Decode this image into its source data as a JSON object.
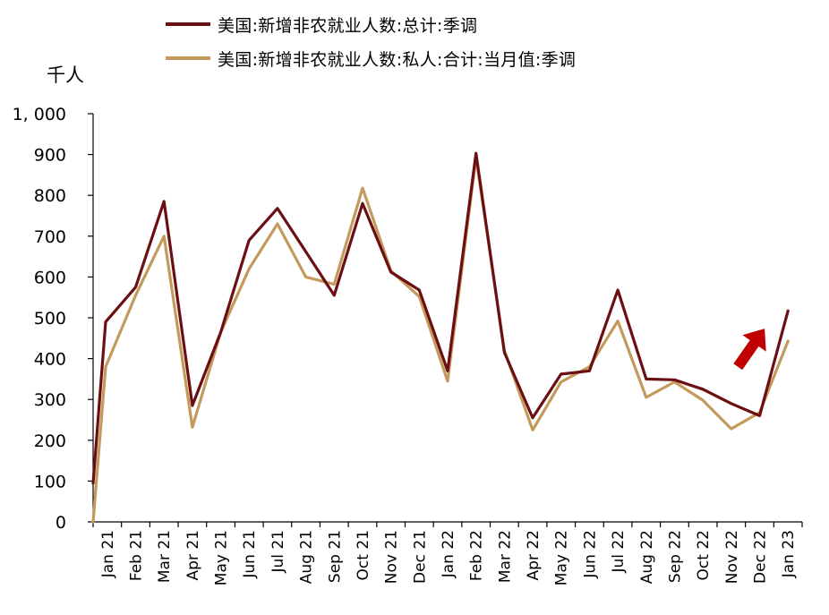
{
  "chart_data": {
    "type": "line",
    "ylabel": "千人",
    "ylim": [
      0,
      1000
    ],
    "yticks": [
      0,
      100,
      200,
      300,
      400,
      500,
      600,
      700,
      800,
      900,
      1000
    ],
    "ytick_labels": [
      "0",
      "100",
      "200",
      "300",
      "400",
      "500",
      "600",
      "700",
      "800",
      "900",
      "1, 000"
    ],
    "categories": [
      "Jan 21",
      "Feb 21",
      "Mar 21",
      "Apr 21",
      "May 21",
      "Jun 21",
      "Jul 21",
      "Aug 21",
      "Sep 21",
      "Oct 21",
      "Nov 21",
      "Dec 21",
      "Jan 22",
      "Feb 22",
      "Mar 22",
      "Apr 22",
      "May 22",
      "Jun 22",
      "Jul 22",
      "Aug 22",
      "Sep 22",
      "Oct 22",
      "Nov 22",
      "Dec 22",
      "Jan 23"
    ],
    "series": [
      {
        "name": "美国:新增非农就业人数:总计:季调",
        "color": "#6b0f12",
        "values": [
          490,
          575,
          785,
          285,
          465,
          690,
          768,
          662,
          555,
          780,
          612,
          568,
          370,
          903,
          415,
          255,
          362,
          370,
          568,
          350,
          348,
          325,
          290,
          260,
          517
        ]
      },
      {
        "name": "美国:新增非农就业人数:私人:合计:当月值:季调",
        "color": "#c49a5c",
        "values": [
          380,
          555,
          700,
          232,
          465,
          620,
          730,
          600,
          582,
          818,
          615,
          552,
          345,
          893,
          420,
          225,
          343,
          380,
          492,
          305,
          343,
          298,
          228,
          268,
          443
        ]
      }
    ],
    "annotations": [
      {
        "type": "arrow",
        "direction": "up-right",
        "color": "#c00000"
      }
    ],
    "grid": false,
    "legend_position": "top"
  }
}
